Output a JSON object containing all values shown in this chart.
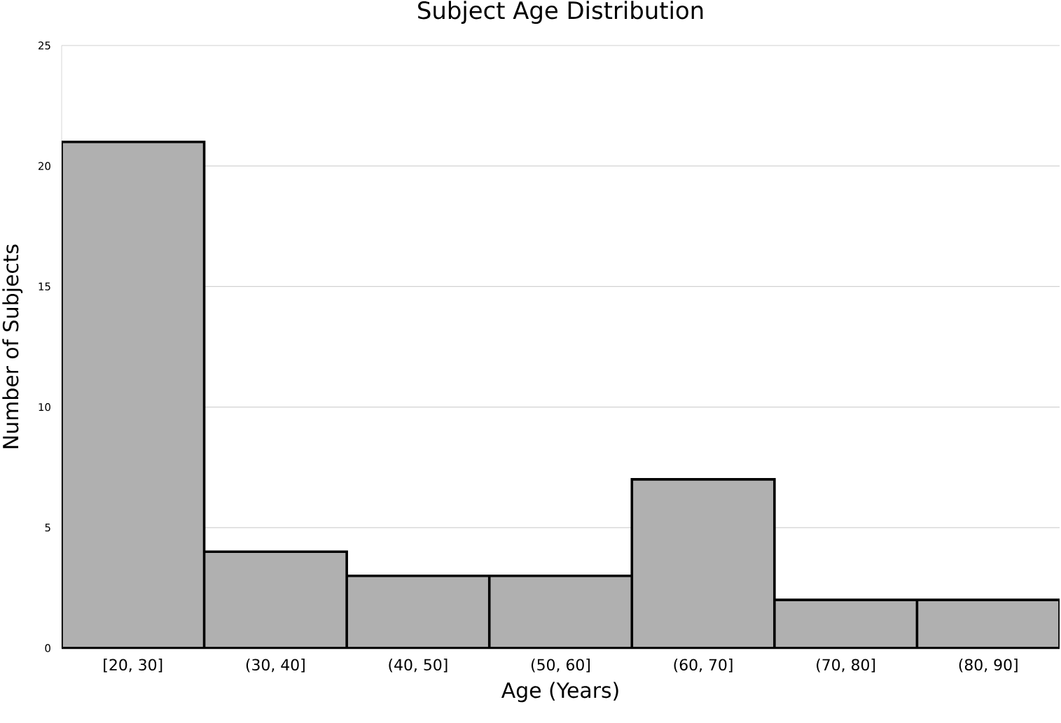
{
  "chart_data": {
    "type": "bar",
    "title": "Subject Age Distribution",
    "xlabel": "Age (Years)",
    "ylabel": "Number of Subjects",
    "categories": [
      "[20, 30]",
      "(30, 40]",
      "(40, 50]",
      "(50, 60]",
      "(60, 70]",
      "(70, 80]",
      "(80, 90]"
    ],
    "values": [
      21,
      4,
      3,
      3,
      7,
      2,
      2
    ],
    "color": "#b0b0b0",
    "ylim": [
      0,
      25
    ],
    "yticks": [
      0,
      5,
      10,
      15,
      20,
      25
    ],
    "grid": "y"
  }
}
